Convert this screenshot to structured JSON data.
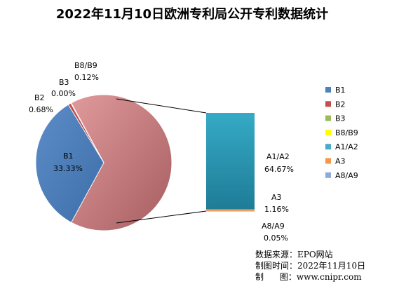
{
  "chart_data": {
    "type": "pie",
    "title": "2022年11月10日欧洲专利局公开专利数据统计",
    "slices": [
      {
        "name": "B1",
        "value": 33.33,
        "label": "33.33%",
        "color": "#4f81bd"
      },
      {
        "name": "B2",
        "value": 0.68,
        "label": "0.68%",
        "color": "#c0504d"
      },
      {
        "name": "B3",
        "value": 0.0,
        "label": "0.00%",
        "color": "#9bbb59"
      },
      {
        "name": "B8/B9",
        "value": 0.12,
        "label": "0.12%",
        "color": "#ffff00"
      },
      {
        "name": "A1/A2",
        "value": 64.67,
        "label": "64.67%",
        "color": "#4bacc6"
      },
      {
        "name": "A3",
        "value": 1.16,
        "label": "1.16%",
        "color": "#f79646"
      },
      {
        "name": "A8/A9",
        "value": 0.05,
        "label": "0.05%",
        "color": "#8ea9db"
      }
    ],
    "main_pie_color": "#d9878a",
    "bar_of_pie_series": [
      "A1/A2",
      "A3",
      "A8/A9"
    ],
    "legend": [
      "B1",
      "B2",
      "B3",
      "B8/B9",
      "A1/A2",
      "A3",
      "A8/A9"
    ],
    "legend_position": "right"
  },
  "source": {
    "line1": "数据来源：EPO网站",
    "line2": "制图时间：2022年11月10日",
    "line3": "制      图：www.cnipr.com"
  }
}
